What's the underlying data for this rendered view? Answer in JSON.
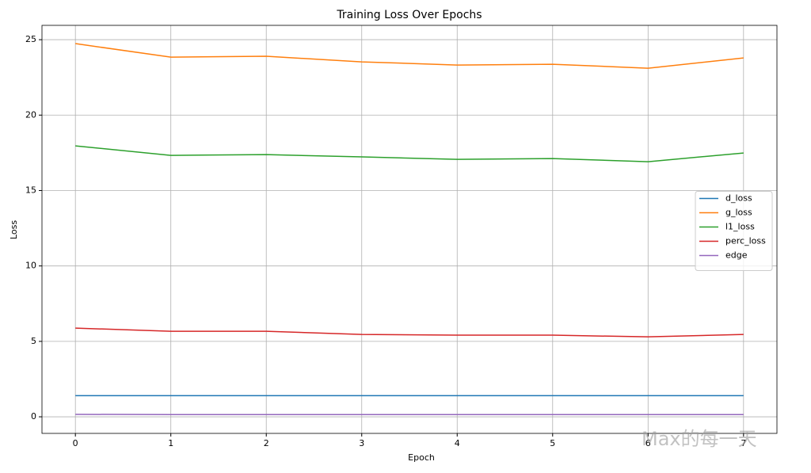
{
  "chart_data": {
    "type": "line",
    "title": "Training Loss Over Epochs",
    "x_label": "Epoch",
    "y_label": "Loss",
    "x": [
      0,
      1,
      2,
      3,
      4,
      5,
      6,
      7
    ],
    "series": [
      {
        "name": "d_loss",
        "color": "#1f77b4",
        "values": [
          1.4,
          1.4,
          1.4,
          1.4,
          1.4,
          1.4,
          1.4,
          1.4
        ]
      },
      {
        "name": "g_loss",
        "color": "#ff7f0e",
        "values": [
          24.74,
          23.84,
          23.9,
          23.53,
          23.32,
          23.37,
          23.11,
          23.79
        ]
      },
      {
        "name": "l1_loss",
        "color": "#2ca02c",
        "values": [
          17.96,
          17.33,
          17.38,
          17.23,
          17.07,
          17.12,
          16.91,
          17.49
        ]
      },
      {
        "name": "perc_loss",
        "color": "#d62728",
        "values": [
          5.88,
          5.67,
          5.67,
          5.46,
          5.41,
          5.41,
          5.3,
          5.46
        ]
      },
      {
        "name": "edge",
        "color": "#9467bd",
        "values": [
          0.16,
          0.15,
          0.15,
          0.15,
          0.15,
          0.15,
          0.15,
          0.15
        ]
      }
    ],
    "xlim": [
      -0.35,
      7.35
    ],
    "xticks": [
      0,
      1,
      2,
      3,
      4,
      5,
      6,
      7
    ],
    "ylim": [
      -1.1,
      25.95
    ],
    "yticks": [
      0,
      5,
      10,
      15,
      20,
      25
    ],
    "grid": true,
    "legend": "center right",
    "watermark": "Max的每一天"
  }
}
